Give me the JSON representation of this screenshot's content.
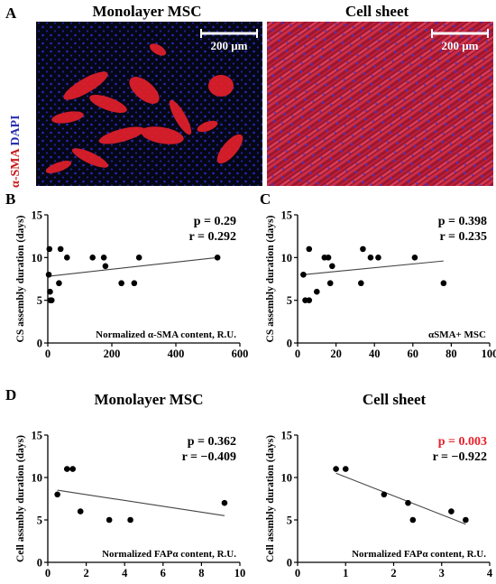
{
  "panels": {
    "A": {
      "letter": "A",
      "stain_label_red": "α-SMA",
      "stain_label_blue": "DAPI",
      "left_title": "Monolayer MSC",
      "right_title": "Cell sheet",
      "scale_bar_label": "200 μm",
      "colors": {
        "actin": "#e8202a",
        "nuclei": "#2a2fd6",
        "background": "#050716"
      }
    }
  },
  "chart_data": [
    {
      "id": "B",
      "letter": "B",
      "type": "scatter",
      "title": "",
      "xlabel": "Normalized α-SMA content, R.U.",
      "ylabel": "CS assembly duration (days)",
      "xlim": [
        0,
        600
      ],
      "ylim": [
        0,
        15
      ],
      "xticks": [
        0,
        200,
        400,
        600
      ],
      "yticks": [
        0,
        5,
        10,
        15
      ],
      "points": [
        {
          "x": 3,
          "y": 8
        },
        {
          "x": 5,
          "y": 11
        },
        {
          "x": 7,
          "y": 6
        },
        {
          "x": 8,
          "y": 5
        },
        {
          "x": 12,
          "y": 5
        },
        {
          "x": 35,
          "y": 7
        },
        {
          "x": 40,
          "y": 11
        },
        {
          "x": 60,
          "y": 10
        },
        {
          "x": 140,
          "y": 10
        },
        {
          "x": 175,
          "y": 10
        },
        {
          "x": 180,
          "y": 9
        },
        {
          "x": 230,
          "y": 7
        },
        {
          "x": 270,
          "y": 7
        },
        {
          "x": 285,
          "y": 10
        },
        {
          "x": 530,
          "y": 10
        }
      ],
      "fit": {
        "x0": 0,
        "y0": 7.8,
        "x1": 530,
        "y1": 10
      },
      "p_text": "p = 0.29",
      "r_text": "r = 0.292",
      "p_significant": false
    },
    {
      "id": "C",
      "letter": "C",
      "type": "scatter",
      "title": "",
      "xlabel": "αSMA+ MSC",
      "ylabel": "CS assembly duration (days)",
      "xlim": [
        0,
        100
      ],
      "ylim": [
        0,
        15
      ],
      "xticks": [
        0,
        20,
        40,
        60,
        80,
        100
      ],
      "yticks": [
        0,
        5,
        10,
        15
      ],
      "points": [
        {
          "x": 3,
          "y": 8
        },
        {
          "x": 4,
          "y": 5
        },
        {
          "x": 6,
          "y": 5
        },
        {
          "x": 6,
          "y": 11
        },
        {
          "x": 10,
          "y": 6
        },
        {
          "x": 14,
          "y": 10
        },
        {
          "x": 16,
          "y": 10
        },
        {
          "x": 17,
          "y": 7
        },
        {
          "x": 18,
          "y": 9
        },
        {
          "x": 33,
          "y": 7
        },
        {
          "x": 34,
          "y": 11
        },
        {
          "x": 38,
          "y": 10
        },
        {
          "x": 42,
          "y": 10
        },
        {
          "x": 61,
          "y": 10
        },
        {
          "x": 76,
          "y": 7
        }
      ],
      "fit": {
        "x0": 3,
        "y0": 8,
        "x1": 76,
        "y1": 9.6
      },
      "p_text": "p = 0.398",
      "r_text": "r = 0.235",
      "p_significant": false
    },
    {
      "id": "D1",
      "letter": "D",
      "type": "scatter",
      "title": "Monolayer MSC",
      "xlabel": "Normalized FAPα content, R.U.",
      "ylabel": "Cell assmbly duration (days)",
      "xlim": [
        0,
        10
      ],
      "ylim": [
        0,
        15
      ],
      "xticks": [
        0,
        2,
        4,
        6,
        8,
        10
      ],
      "yticks": [
        0,
        5,
        10,
        15
      ],
      "points": [
        {
          "x": 0.5,
          "y": 8
        },
        {
          "x": 1.0,
          "y": 11
        },
        {
          "x": 1.3,
          "y": 11
        },
        {
          "x": 1.7,
          "y": 6
        },
        {
          "x": 3.2,
          "y": 5
        },
        {
          "x": 4.3,
          "y": 5
        },
        {
          "x": 9.2,
          "y": 7
        }
      ],
      "fit": {
        "x0": 0.5,
        "y0": 8.5,
        "x1": 9.2,
        "y1": 5.5
      },
      "p_text": "p = 0.362",
      "r_text": "r = −0.409",
      "p_significant": false
    },
    {
      "id": "D2",
      "letter": "",
      "type": "scatter",
      "title": "Cell sheet",
      "xlabel": "Normalized FAPα content, R.U.",
      "ylabel": "Cell assmbly duration (days)",
      "xlim": [
        0,
        4
      ],
      "ylim": [
        0,
        15
      ],
      "xticks": [
        0,
        1,
        2,
        3,
        4
      ],
      "yticks": [
        0,
        5,
        10,
        15
      ],
      "points": [
        {
          "x": 0.8,
          "y": 11
        },
        {
          "x": 1.0,
          "y": 11
        },
        {
          "x": 1.8,
          "y": 8
        },
        {
          "x": 2.3,
          "y": 7
        },
        {
          "x": 2.4,
          "y": 5
        },
        {
          "x": 3.2,
          "y": 6
        },
        {
          "x": 3.5,
          "y": 5
        }
      ],
      "fit": {
        "x0": 0.8,
        "y0": 10.5,
        "x1": 3.5,
        "y1": 4.5
      },
      "p_text": "p = 0.003",
      "r_text": "r = −0.922",
      "p_significant": true
    }
  ]
}
